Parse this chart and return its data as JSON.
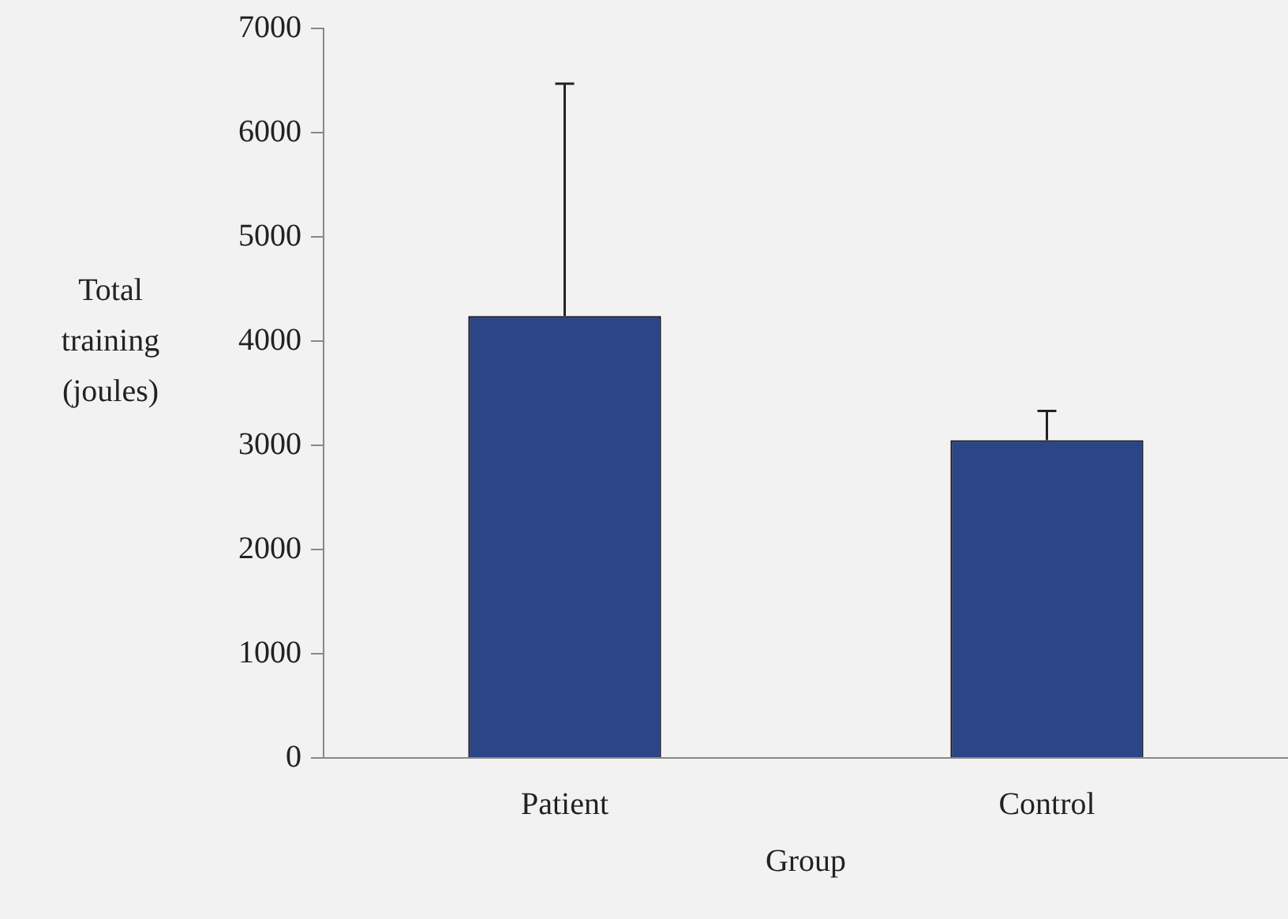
{
  "chart_data": {
    "type": "bar",
    "xlabel": "Group",
    "ylabel": "Total training (joules)",
    "categories": [
      "Patient",
      "Control"
    ],
    "values": [
      4240,
      3050
    ],
    "errors": [
      [
        4240,
        6470
      ],
      [
        3050,
        3330
      ]
    ],
    "color": "#2b4586",
    "ylim": [
      0,
      7000
    ],
    "yticks": [
      0,
      1000,
      2000,
      3000,
      4000,
      5000,
      6000,
      7000
    ],
    "grid": false,
    "legend": false
  }
}
